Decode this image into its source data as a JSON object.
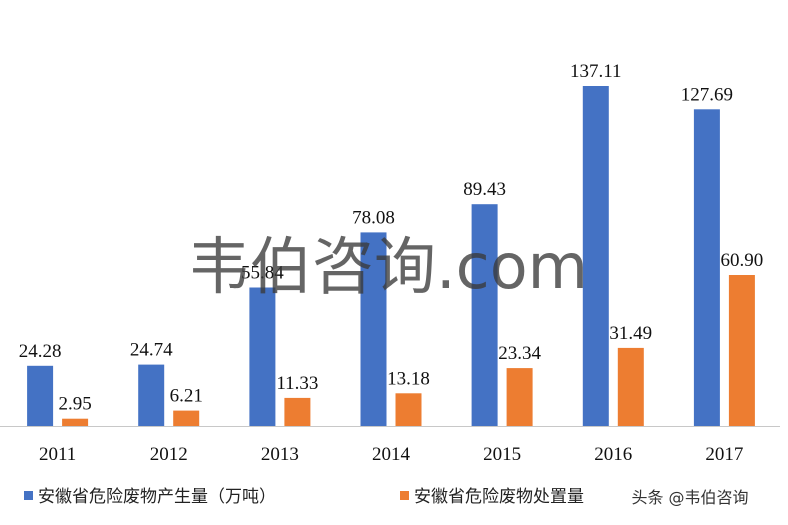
{
  "chart_data": {
    "type": "bar",
    "title": "",
    "xlabel": "",
    "ylabel": "",
    "categories": [
      "2011",
      "2012",
      "2013",
      "2014",
      "2015",
      "2016",
      "2017"
    ],
    "series": [
      {
        "name": "安徽省危险废物产生量（万吨）",
        "color": "#4472C4",
        "values": [
          24.28,
          24.74,
          55.84,
          78.08,
          89.43,
          137.11,
          127.69
        ],
        "labels": [
          "24.28",
          "24.74",
          "55.84",
          "78.08",
          "89.43",
          "137.11",
          "127.69"
        ]
      },
      {
        "name": "安徽省危险废物处置量",
        "color": "#ED7D31",
        "values": [
          2.95,
          6.21,
          11.33,
          13.18,
          23.34,
          31.49,
          60.9
        ],
        "labels": [
          "2.95",
          "6.21",
          "11.33",
          "13.18",
          "23.34",
          "31.49",
          "60.90"
        ]
      }
    ],
    "ylim": [
      0,
      145
    ],
    "grid": false,
    "legend": "bottom"
  },
  "watermark": {
    "center_text": "韦伯咨询.com",
    "corner_text": "头条 @韦伯咨询"
  },
  "colors": {
    "axis": "#c8c8c8"
  }
}
